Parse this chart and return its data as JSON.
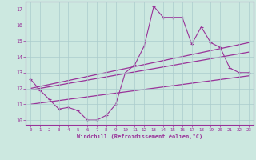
{
  "xlabel": "Windchill (Refroidissement éolien,°C)",
  "bg_color": "#cce8e0",
  "grid_color": "#aacccc",
  "line_color": "#993399",
  "xlim": [
    -0.5,
    23.5
  ],
  "ylim": [
    9.7,
    17.5
  ],
  "xticks": [
    0,
    1,
    2,
    3,
    4,
    5,
    6,
    7,
    8,
    9,
    10,
    11,
    12,
    13,
    14,
    15,
    16,
    17,
    18,
    19,
    20,
    21,
    22,
    23
  ],
  "yticks": [
    10,
    11,
    12,
    13,
    14,
    15,
    16,
    17
  ],
  "series1_x": [
    0,
    1,
    2,
    3,
    4,
    5,
    6,
    7,
    8,
    9,
    10,
    11,
    12,
    13,
    14,
    15,
    16,
    17,
    18,
    19,
    20,
    21,
    22,
    23
  ],
  "series1_y": [
    12.6,
    11.9,
    11.3,
    10.7,
    10.8,
    10.6,
    10.0,
    10.0,
    10.3,
    11.0,
    13.0,
    13.5,
    14.7,
    17.2,
    16.5,
    16.5,
    16.5,
    14.8,
    15.9,
    14.9,
    14.6,
    13.3,
    13.0,
    13.0
  ],
  "series2_x": [
    0,
    23
  ],
  "series2_y": [
    11.9,
    14.3
  ],
  "series3_x": [
    0,
    23
  ],
  "series3_y": [
    12.0,
    14.9
  ],
  "series4_x": [
    0,
    23
  ],
  "series4_y": [
    11.0,
    12.8
  ]
}
